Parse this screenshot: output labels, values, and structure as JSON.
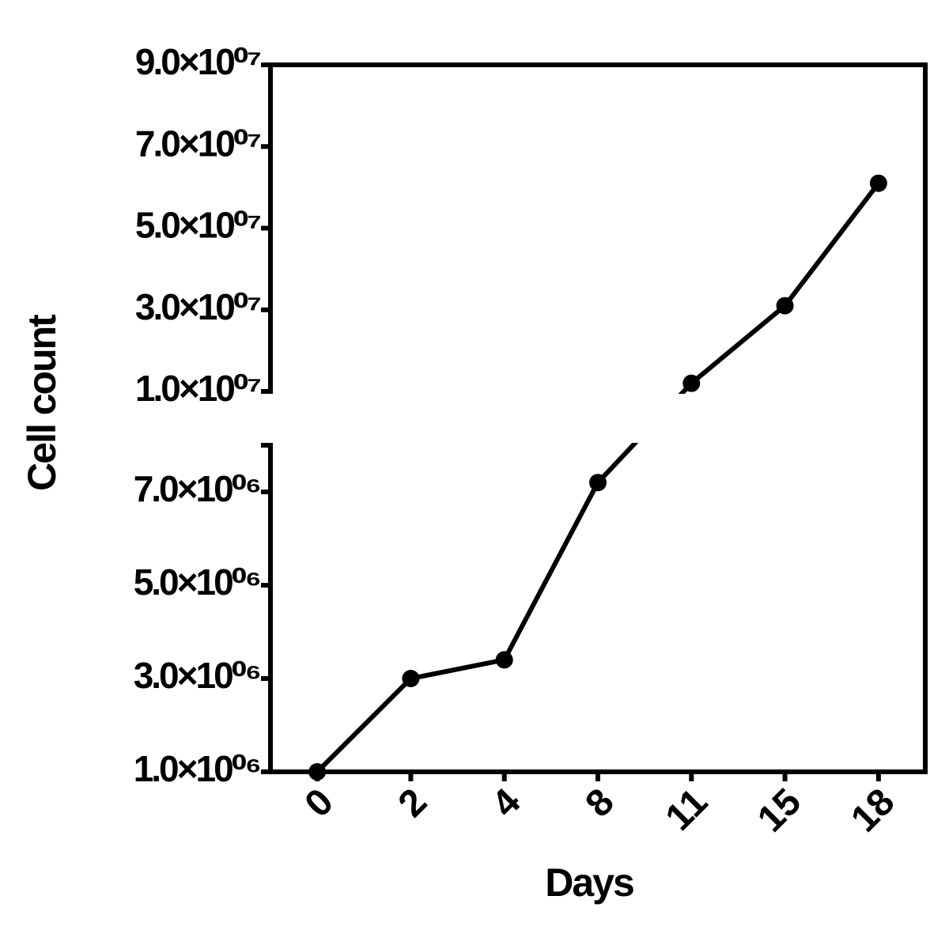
{
  "chart_data": {
    "type": "line",
    "x_label": "Days",
    "y_label": "Cell count",
    "categories": [
      "0",
      "2",
      "4",
      "8",
      "11",
      "15",
      "18"
    ],
    "series": [
      {
        "color": "#000000",
        "values": [
          1000000,
          3000000,
          3400000,
          7200000,
          12000000,
          31000000,
          61000000
        ]
      }
    ],
    "y_segments": [
      {
        "ylim": [
          1000000,
          8000000
        ],
        "yticks": [
          {
            "value": 1000000,
            "label": "1.0×10⁰⁶"
          },
          {
            "value": 3000000,
            "label": "3.0×10⁰⁶"
          },
          {
            "value": 5000000,
            "label": "5.0×10⁰⁶"
          },
          {
            "value": 7000000,
            "label": "7.0×10⁰⁶"
          }
        ]
      },
      {
        "ylim": [
          10000000,
          90000000
        ],
        "yticks": [
          {
            "value": 10000000,
            "label": "1.0×10⁰⁷"
          },
          {
            "value": 30000000,
            "label": "3.0×10⁰⁷"
          },
          {
            "value": 50000000,
            "label": "5.0×10⁰⁷"
          },
          {
            "value": 70000000,
            "label": "7.0×10⁰⁷"
          },
          {
            "value": 90000000,
            "label": "9.0×10⁰⁷"
          }
        ]
      }
    ]
  }
}
